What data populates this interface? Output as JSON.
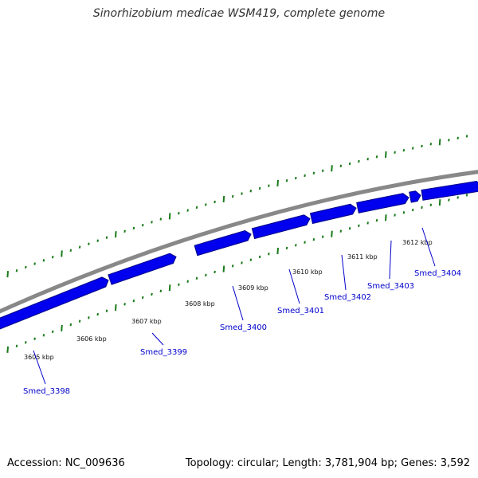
{
  "title": "Sinorhizobium medicae WSM419, complete genome",
  "footer": {
    "accession": "Accession: NC_009636",
    "topology": "Topology: circular; Length: 3,781,904 bp; Genes: 3,592"
  },
  "colors": {
    "backbone": "#888888",
    "gene": "#0000ee",
    "gene_edge": "#000088",
    "tick": "#1a7a1a",
    "gene_label": "#0000cc",
    "leader": "#0000cc"
  },
  "scale_labels": [
    "3605 kbp",
    "3606 kbp",
    "3607 kbp",
    "3608 kbp",
    "3609 kbp",
    "3610 kbp",
    "3611 kbp",
    "3612 kbp"
  ],
  "genes": [
    {
      "name": "Smed_3398"
    },
    {
      "name": "Smed_3399"
    },
    {
      "name": "Smed_3400"
    },
    {
      "name": "Smed_3401"
    },
    {
      "name": "Smed_3402"
    },
    {
      "name": "Smed_3403"
    },
    {
      "name": "Smed_3404"
    }
  ]
}
